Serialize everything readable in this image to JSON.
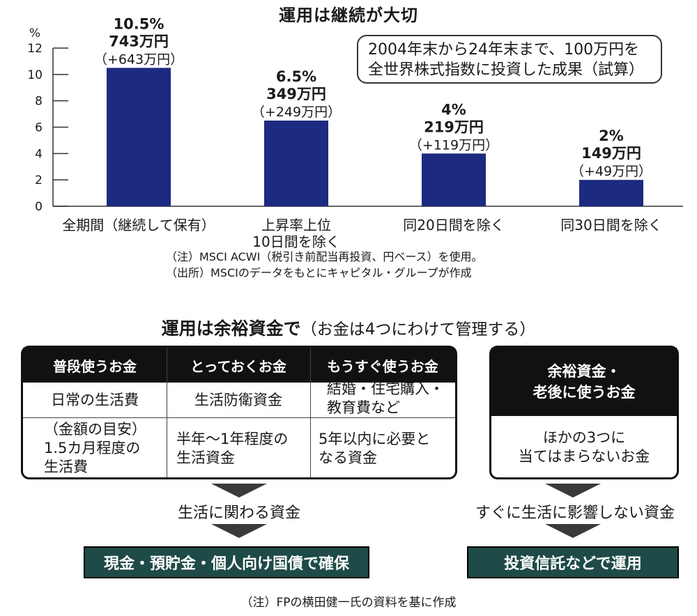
{
  "chart_data": {
    "type": "bar",
    "title": "運用は継続が大切",
    "ylabel": "%",
    "ylim": [
      0,
      12
    ],
    "yticks": [
      0,
      2,
      4,
      6,
      8,
      10,
      12
    ],
    "categories": [
      [
        "全期間（継続して保有）"
      ],
      [
        "上昇率上位",
        "10日間を除く"
      ],
      [
        "同20日間を除く"
      ],
      [
        "同30日間を除く"
      ]
    ],
    "values": [
      10.5,
      6.5,
      4,
      2
    ],
    "value_labels": [
      [
        "10.5%",
        "743万円",
        "（+643万円）"
      ],
      [
        "6.5%",
        "349万円",
        "（+249万円）"
      ],
      [
        "4%",
        "219万円",
        "（+119万円）"
      ],
      [
        "2%",
        "149万円",
        "（+49万円）"
      ]
    ],
    "bar_color": "#1c2a80",
    "annotation": [
      "2004年末から24年末まで、100万円を",
      "全世界株式指数に投資した成果（試算）"
    ],
    "notes": [
      "（注）MSCI ACWI（税引き前配当再投資、円ベース）を使用。",
      "（出所）MSCIのデータをもとにキャピタル・グループが作成"
    ]
  },
  "section2": {
    "title_bold": "運用は余裕資金で",
    "title_rest": "（お金は4つにわけて管理する）",
    "columns": [
      {
        "header": "普段使うお金",
        "row1": "日常の生活費",
        "row2": "（金額の目安）\n1.5カ月程度の\n生活費"
      },
      {
        "header": "とっておくお金",
        "row1": "生活防衛資金",
        "row2": "半年～1年程度の\n生活資金"
      },
      {
        "header": "もうすぐ使うお金",
        "row1": "結婚・住宅購入・\n教育費など",
        "row2": "5年以内に必要と\nなる資金"
      }
    ],
    "right": {
      "header_line1": "余裕資金・",
      "header_line2": "老後に使うお金",
      "body": "ほかの3つに\n当てはまらないお金"
    },
    "left_flow_label": "生活に関わる資金",
    "right_flow_label": "すぐに生活に影響しない資金",
    "left_result": "現金・預貯金・個人向け国債で確保",
    "right_result": "投資信託などで運用",
    "result_color": "#1e4a47",
    "footnote": "（注）FPの横田健一氏の資料を基に作成"
  }
}
